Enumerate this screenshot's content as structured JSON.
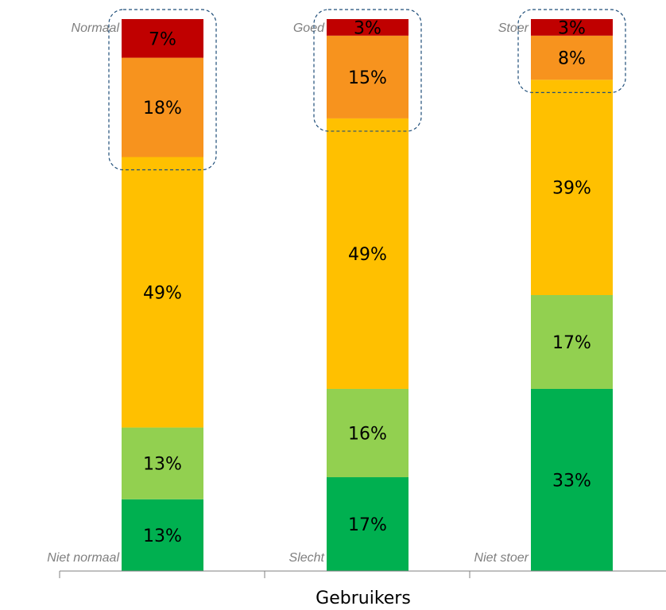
{
  "chart_data": {
    "type": "bar",
    "stacked": true,
    "orientation": "vertical",
    "xlabel": "Gebruikers",
    "ylim": [
      0,
      100
    ],
    "grid": false,
    "legend": "none",
    "segment_order_bottom_to_top": [
      "1",
      "2",
      "3",
      "4",
      "5"
    ],
    "segment_colors": [
      "#00b050",
      "#92d050",
      "#ffc000",
      "#f7931e",
      "#c00000"
    ],
    "bars": [
      {
        "top_label": "Normaal",
        "bottom_label": "Niet normaal",
        "values": [
          13,
          13,
          49,
          18,
          7
        ],
        "labels": [
          "13%",
          "13%",
          "49%",
          "18%",
          "7%"
        ],
        "highlighted_top_segments": 2
      },
      {
        "top_label": "Goed",
        "bottom_label": "Slecht",
        "values": [
          17,
          16,
          49,
          15,
          3
        ],
        "labels": [
          "17%",
          "16%",
          "49%",
          "15%",
          "3%"
        ],
        "highlighted_top_segments": 2
      },
      {
        "top_label": "Stoer",
        "bottom_label": "Niet stoer",
        "values": [
          33,
          17,
          39,
          8,
          3
        ],
        "labels": [
          "33%",
          "17%",
          "39%",
          "8%",
          "3%"
        ],
        "highlighted_top_segments": 2
      }
    ]
  }
}
